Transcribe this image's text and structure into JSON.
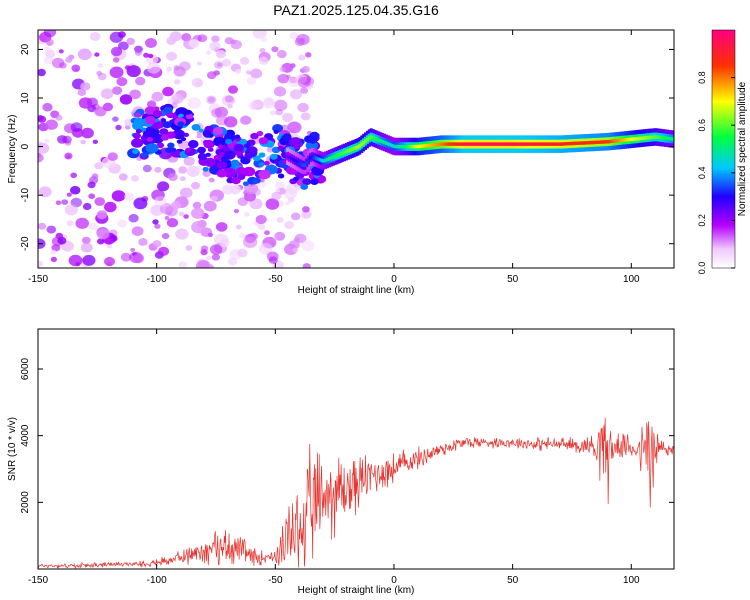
{
  "title": "PAZ1.2025.125.04.35.G16",
  "colors": {
    "snr_line": "#e8332e",
    "spectrum_low": "#ffffff",
    "spectrum_mid": "#00ff00",
    "spectrum_high": "#ff0066"
  },
  "chart_data": [
    {
      "type": "heatmap",
      "xlabel": "Height of straight line (km)",
      "ylabel": "Frequency (Hz)",
      "xlim": [
        -150,
        118
      ],
      "ylim": [
        -25,
        24
      ],
      "x_ticks": [
        -150,
        -100,
        -50,
        0,
        50,
        100
      ],
      "y_ticks": [
        -20,
        -10,
        0,
        10,
        20
      ],
      "colorbar": {
        "label": "Normalized spectral amplitude",
        "range": [
          0,
          1
        ],
        "ticks": [
          "0.0",
          "0.2",
          "0.4",
          "0.6",
          "0.8"
        ],
        "colormap": "rainbow (white-magenta-blue-cyan-green-yellow-red-pink)"
      },
      "ridge": {
        "x": [
          -105,
          -95,
          -85,
          -80,
          -70,
          -60,
          -50,
          -45,
          -38,
          -35,
          -30,
          -25,
          -20,
          -15,
          -10,
          -5,
          0,
          5,
          10,
          20,
          30,
          50,
          70,
          90,
          100,
          110,
          118
        ],
        "y": [
          3,
          3,
          2,
          0,
          -2,
          -3,
          -1,
          -2,
          -4,
          -2,
          -3,
          -2,
          -1,
          0,
          2,
          1,
          0,
          0,
          0,
          0.5,
          0.5,
          0.5,
          0.5,
          1,
          1.5,
          2,
          1.5
        ],
        "amplitude": [
          0.15,
          0.2,
          0.25,
          0.3,
          0.3,
          0.25,
          0.2,
          0.25,
          0.35,
          0.3,
          0.45,
          0.55,
          0.6,
          0.65,
          0.6,
          0.5,
          0.45,
          0.55,
          0.7,
          0.8,
          0.95,
          0.95,
          0.9,
          0.85,
          0.7,
          0.6,
          0.5
        ]
      }
    },
    {
      "type": "line",
      "xlabel": "Height of straight line (km)",
      "ylabel": "SNR (10 * v/v)",
      "xlim": [
        -150,
        118
      ],
      "ylim": [
        0,
        7200
      ],
      "x_ticks": [
        -150,
        -100,
        -50,
        0,
        50,
        100
      ],
      "y_ticks": [
        2000,
        4000,
        6000
      ],
      "series": [
        {
          "x": [
            -150,
            -130,
            -110,
            -100,
            -90,
            -80,
            -75,
            -70,
            -65,
            -60,
            -50,
            -45,
            -40,
            -35,
            -30,
            -25,
            -20,
            -15,
            -10,
            -5,
            0,
            5,
            10,
            20,
            30,
            40,
            50,
            60,
            70,
            80,
            85,
            88,
            90,
            92,
            95,
            100,
            103,
            105,
            107,
            108,
            109,
            110,
            112,
            118
          ],
          "y": [
            100,
            100,
            150,
            200,
            350,
            550,
            650,
            700,
            600,
            350,
            400,
            800,
            1300,
            1700,
            2200,
            2300,
            2400,
            2600,
            2800,
            2900,
            3000,
            3200,
            3300,
            3600,
            3800,
            3800,
            3800,
            3750,
            3750,
            3700,
            3700,
            3800,
            3500,
            3600,
            3700,
            3650,
            3600,
            3500,
            3700,
            3300,
            3200,
            3500,
            3600,
            3600
          ],
          "spread": [
            80,
            90,
            100,
            150,
            250,
            500,
            600,
            700,
            500,
            300,
            300,
            1200,
            1800,
            2200,
            1800,
            1600,
            1400,
            1000,
            800,
            700,
            600,
            500,
            400,
            300,
            250,
            200,
            200,
            250,
            250,
            300,
            600,
            1600,
            2000,
            500,
            400,
            500,
            500,
            1200,
            1500,
            4000,
            3200,
            1000,
            600,
            300
          ]
        }
      ]
    }
  ]
}
